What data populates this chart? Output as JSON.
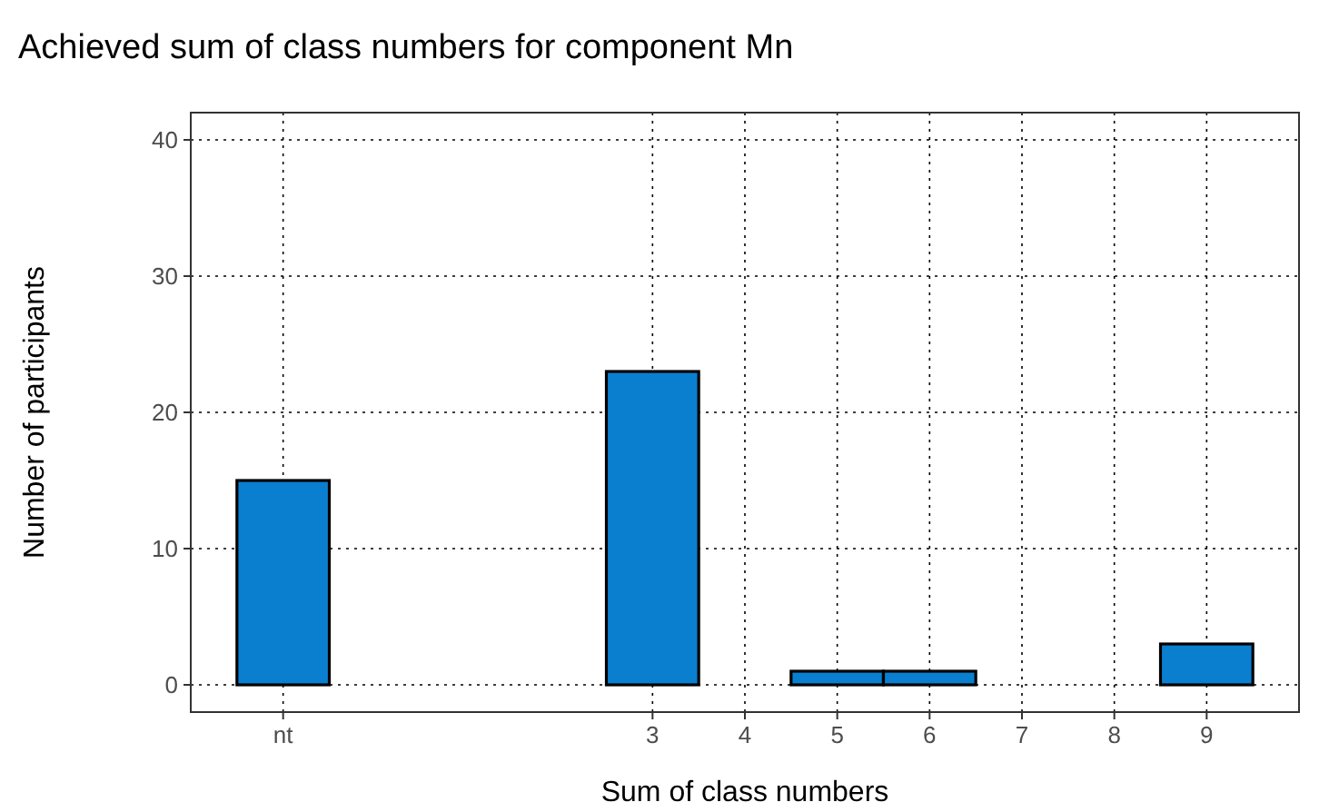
{
  "chart_data": {
    "type": "bar",
    "title": "Achieved sum of class numbers for component Mn",
    "xlabel": "Sum of class numbers",
    "ylabel": "Number of participants",
    "categories": [
      "nt",
      null,
      null,
      null,
      "3",
      "4",
      "5",
      "6",
      "7",
      "8",
      "9"
    ],
    "values": [
      15,
      0,
      0,
      0,
      23,
      0,
      1,
      1,
      0,
      0,
      3
    ],
    "color": "#0a7fd0",
    "ylim": [
      -2,
      42
    ],
    "yticks": [
      0,
      10,
      20,
      30,
      40
    ],
    "grid": true
  }
}
